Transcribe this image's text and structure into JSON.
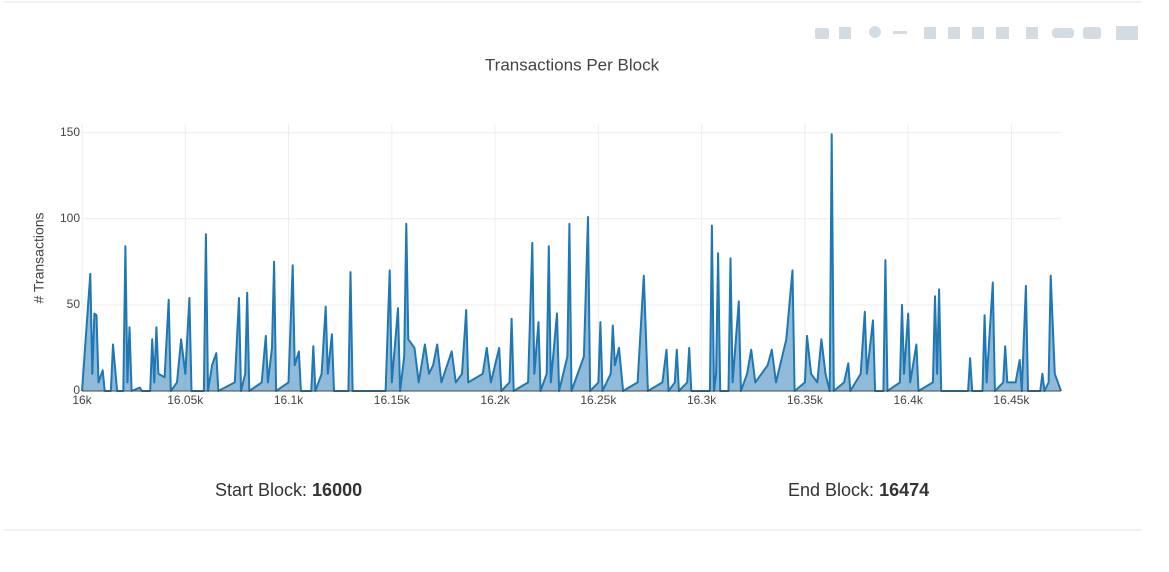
{
  "chart_data": {
    "type": "area",
    "title": "Transactions Per Block",
    "y_label": "# Transactions",
    "x": [
      16000,
      16004,
      16005,
      16006,
      16007,
      16008,
      16010,
      16011,
      16014,
      16015,
      16017,
      16020,
      16021,
      16022,
      16023,
      16024,
      16028,
      16029,
      16033,
      16034,
      16035,
      16036,
      16037,
      16040,
      16042,
      16043,
      16046,
      16048,
      16050,
      16052,
      16053,
      16059,
      16060,
      16061,
      16063,
      16065,
      16066,
      16074,
      16076,
      16077,
      16079,
      16080,
      16081,
      16087,
      16089,
      16090,
      16092,
      16093,
      16094,
      16100,
      16102,
      16103,
      16105,
      16106,
      16111,
      16112,
      16113,
      16116,
      16118,
      16119,
      16121,
      16122,
      16129,
      16130,
      16131,
      16147,
      16149,
      16150,
      16153,
      16154,
      16156,
      16157,
      16158,
      16161,
      16163,
      16166,
      16168,
      16170,
      16172,
      16174,
      16179,
      16181,
      16184,
      16186,
      16187,
      16194,
      16196,
      16198,
      16202,
      16203,
      16207,
      16208,
      16209,
      16216,
      16218,
      16219,
      16221,
      16222,
      16225,
      16226,
      16227,
      16230,
      16231,
      16235,
      16236,
      16237,
      16243,
      16245,
      16246,
      16250,
      16251,
      16252,
      16256,
      16257,
      16258,
      16260,
      16262,
      16269,
      16272,
      16274,
      16281,
      16283,
      16284,
      16287,
      16288,
      16289,
      16293,
      16294,
      16295,
      16304,
      16305,
      16306,
      16307,
      16308,
      16309,
      16313,
      16314,
      16315,
      16318,
      16319,
      16322,
      16324,
      16326,
      16332,
      16334,
      16336,
      16341,
      16344,
      16345,
      16350,
      16351,
      16353,
      16356,
      16358,
      16360,
      16362,
      16363,
      16364,
      16369,
      16371,
      16372,
      16377,
      16379,
      16380,
      16383,
      16384,
      16388,
      16389,
      16390,
      16396,
      16397,
      16398,
      16400,
      16401,
      16404,
      16405,
      16412,
      16413,
      16414,
      16415,
      16416,
      16429,
      16430,
      16431,
      16436,
      16437,
      16438,
      16441,
      16442,
      16446,
      16447,
      16448,
      16452,
      16454,
      16455,
      16457,
      16458,
      16464,
      16465,
      16466,
      16468,
      16469,
      16471,
      16474
    ],
    "series": [
      {
        "name": "Transactions",
        "color": "#1f77b4",
        "values": [
          0,
          68,
          10,
          45,
          44,
          5,
          12,
          0,
          0,
          27,
          0,
          0,
          84,
          5,
          37,
          0,
          2,
          0,
          0,
          30,
          5,
          37,
          10,
          8,
          53,
          0,
          5,
          30,
          10,
          54,
          0,
          0,
          91,
          0,
          15,
          22,
          0,
          5,
          54,
          0,
          10,
          57,
          0,
          5,
          32,
          5,
          25,
          75,
          0,
          5,
          73,
          15,
          23,
          0,
          0,
          26,
          0,
          10,
          49,
          10,
          33,
          0,
          0,
          69,
          0,
          0,
          70,
          5,
          48,
          0,
          20,
          97,
          30,
          25,
          5,
          27,
          10,
          15,
          27,
          5,
          23,
          5,
          10,
          47,
          5,
          10,
          25,
          5,
          25,
          0,
          5,
          42,
          0,
          5,
          86,
          10,
          40,
          0,
          10,
          84,
          5,
          45,
          0,
          20,
          97,
          0,
          20,
          101,
          0,
          5,
          40,
          0,
          10,
          38,
          15,
          25,
          0,
          5,
          67,
          0,
          5,
          24,
          0,
          5,
          24,
          0,
          5,
          25,
          0,
          0,
          96,
          0,
          10,
          80,
          0,
          0,
          77,
          5,
          52,
          0,
          10,
          24,
          5,
          15,
          24,
          5,
          30,
          70,
          0,
          5,
          32,
          10,
          5,
          30,
          10,
          0,
          149,
          0,
          5,
          16,
          0,
          10,
          46,
          10,
          41,
          0,
          0,
          76,
          0,
          5,
          50,
          10,
          45,
          5,
          27,
          0,
          5,
          55,
          10,
          59,
          0,
          0,
          19,
          0,
          0,
          44,
          5,
          63,
          0,
          5,
          26,
          5,
          5,
          18,
          0,
          61,
          0,
          0,
          10,
          0,
          5,
          67,
          10,
          0
        ]
      }
    ],
    "xlim": [
      16000,
      16474
    ],
    "ylim": [
      0,
      155
    ],
    "xticks": [
      {
        "value": 16000,
        "label": "16k"
      },
      {
        "value": 16050,
        "label": "16.05k"
      },
      {
        "value": 16100,
        "label": "16.1k"
      },
      {
        "value": 16150,
        "label": "16.15k"
      },
      {
        "value": 16200,
        "label": "16.2k"
      },
      {
        "value": 16250,
        "label": "16.25k"
      },
      {
        "value": 16300,
        "label": "16.3k"
      },
      {
        "value": 16350,
        "label": "16.35k"
      },
      {
        "value": 16400,
        "label": "16.4k"
      },
      {
        "value": 16450,
        "label": "16.45k"
      }
    ],
    "yticks": [
      0,
      50,
      100,
      150
    ],
    "grid": true
  },
  "footer": {
    "start_label": "Start Block:",
    "start_value": 16000,
    "end_label": "End Block:",
    "end_value": 16474
  }
}
